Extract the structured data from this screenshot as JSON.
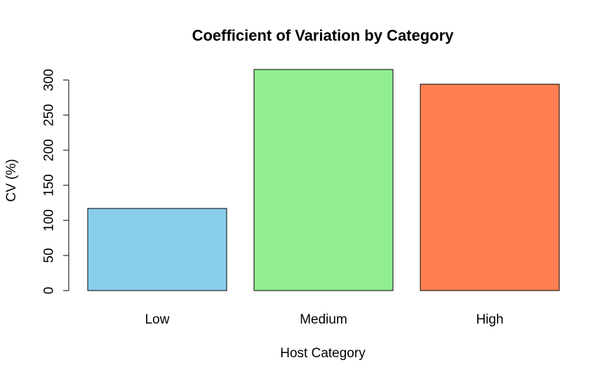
{
  "chart_data": {
    "type": "bar",
    "title": "Coefficient of Variation by Category",
    "xlabel": "Host Category",
    "ylabel": "CV (%)",
    "categories": [
      "Low",
      "Medium",
      "High"
    ],
    "values": [
      117,
      315,
      294
    ],
    "colors": [
      "#87CEEB",
      "#90EE90",
      "#FF7F50"
    ],
    "ylim": [
      0,
      300
    ],
    "yticks": [
      0,
      50,
      100,
      150,
      200,
      250,
      300
    ],
    "ytick_labels": [
      "0",
      "50",
      "100",
      "150",
      "200",
      "250",
      "300"
    ],
    "grid": false,
    "legend": "none"
  }
}
